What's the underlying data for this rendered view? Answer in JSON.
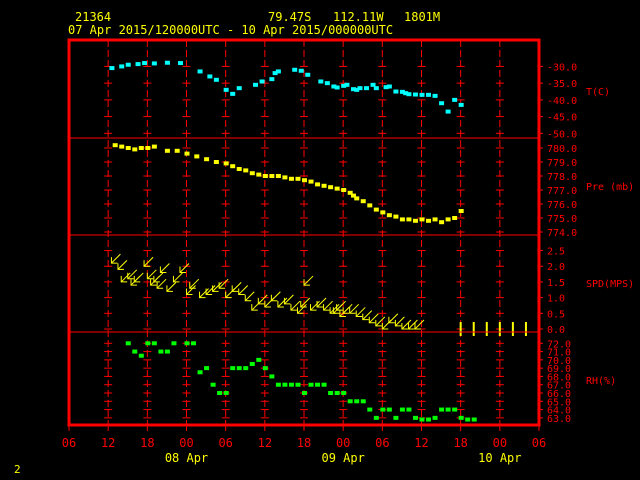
{
  "header": {
    "station": "21364",
    "lat": "79.47S",
    "lon": "112.11W",
    "elev": "1801M",
    "period": "07 Apr 2015/120000UTC - 10 Apr 2015/000000UTC"
  },
  "footer": {
    "page_number": "2"
  },
  "colors": {
    "frame": "#ff0000",
    "grid": "#ff0000",
    "axis_text": "#ff0000",
    "date_text": "#ffff00",
    "temperature": "#00ffff",
    "pressure": "#ffff00",
    "wind": "#ffff00",
    "humidity": "#00ff00"
  },
  "chart_data": {
    "type": "scatter",
    "x_unit": "hours since 07 Apr 2015 06UTC",
    "x_range": [
      0,
      72
    ],
    "x_tick_labels": [
      "06",
      "12",
      "18",
      "00",
      "06",
      "12",
      "18",
      "00",
      "06",
      "12",
      "18",
      "00",
      "06"
    ],
    "date_labels": [
      {
        "text": "08 Apr",
        "x": 18
      },
      {
        "text": "09 Apr",
        "x": 42
      },
      {
        "text": "10 Apr",
        "x": 66
      }
    ],
    "panels": [
      {
        "name": "temperature",
        "label": "T(C)",
        "tick_labels": [
          "-30.0",
          "-35.0",
          "-40.0",
          "-45.0",
          "-50.0"
        ],
        "tick_values": [
          -30,
          -35,
          -40,
          -45,
          -50
        ],
        "ylim": [
          -50.5,
          -23.0
        ],
        "x": [
          6.5,
          8,
          9,
          10.5,
          11.5,
          13,
          15,
          17,
          20,
          21.5,
          22.5,
          24,
          25,
          26,
          28.5,
          29.5,
          31,
          31.5,
          32,
          34.5,
          35.5,
          36.5,
          38.5,
          39.5,
          40.5,
          41,
          42,
          42.5,
          43.5,
          44,
          44.5,
          45.5,
          46.5,
          47,
          48.5,
          49,
          50,
          51,
          51.5,
          52,
          53,
          54,
          55,
          56,
          57,
          58,
          59,
          60
        ],
        "y": [
          -30.5,
          -30.0,
          -29.5,
          -29.3,
          -29.0,
          -29.1,
          -28.9,
          -29.0,
          -31.5,
          -33.0,
          -34.0,
          -37.0,
          -38.2,
          -36.5,
          -35.5,
          -34.5,
          -33.8,
          -32.0,
          -31.5,
          -31.0,
          -31.3,
          -32.5,
          -34.5,
          -35.0,
          -36.0,
          -36.3,
          -35.8,
          -35.5,
          -36.8,
          -37.0,
          -36.5,
          -36.5,
          -35.5,
          -36.5,
          -36.2,
          -36.0,
          -37.5,
          -37.6,
          -38.0,
          -38.3,
          -38.4,
          -38.5,
          -38.5,
          -38.8,
          -41.0,
          -43.5,
          -40.0,
          -41.5
        ]
      },
      {
        "name": "pressure",
        "label": "Pre (mb)",
        "tick_labels": [
          "780.0",
          "779.0",
          "778.0",
          "777.0",
          "776.0",
          "775.0",
          "774.0"
        ],
        "tick_values": [
          780,
          779,
          778,
          777,
          776,
          775,
          774
        ],
        "ylim": [
          774.0,
          780.5
        ],
        "x": [
          7,
          8,
          9,
          10,
          11,
          12,
          13,
          15,
          16.5,
          18,
          19.5,
          21,
          22.5,
          24,
          25,
          26,
          27,
          28,
          29,
          30,
          31,
          32,
          33,
          34,
          35,
          36,
          37,
          38,
          39,
          40,
          41,
          42,
          43,
          43.5,
          44,
          45,
          46,
          47,
          48,
          49,
          50,
          51,
          52,
          53,
          54,
          55,
          56,
          57,
          58,
          59,
          60
        ],
        "y": [
          780.2,
          780.1,
          780.0,
          779.9,
          780.0,
          780.0,
          780.1,
          779.8,
          779.8,
          779.6,
          779.4,
          779.2,
          779.0,
          778.9,
          778.7,
          778.5,
          778.4,
          778.2,
          778.1,
          778.0,
          778.0,
          778.0,
          777.9,
          777.8,
          777.8,
          777.7,
          777.6,
          777.4,
          777.3,
          777.2,
          777.1,
          777.0,
          776.8,
          776.6,
          776.4,
          776.2,
          775.9,
          775.6,
          775.4,
          775.2,
          775.1,
          774.9,
          774.9,
          774.8,
          774.9,
          774.8,
          774.9,
          774.7,
          774.9,
          775.0,
          775.5
        ]
      },
      {
        "name": "wind",
        "label": "SPD(MPS)",
        "tick_labels": [
          "2.5",
          "2.0",
          "1.5",
          "1.0",
          "0.5",
          "0.0"
        ],
        "tick_values": [
          2.5,
          2.0,
          1.5,
          1.0,
          0.5,
          0.0
        ],
        "ylim": [
          0.0,
          2.9
        ],
        "x": [
          6.5,
          7.5,
          8,
          9,
          9.5,
          10,
          11.5,
          12,
          12.5,
          13,
          13.5,
          14,
          15,
          16,
          17,
          18,
          18.5,
          20,
          21,
          22,
          23,
          24,
          25,
          26,
          27,
          28,
          29,
          30,
          31,
          32,
          33,
          34,
          35,
          35.5,
          36,
          37,
          38,
          39,
          40,
          40.5,
          41,
          41.5,
          42,
          43,
          44,
          45,
          46,
          47,
          48,
          49,
          50,
          51,
          52,
          53
        ],
        "y": [
          2.1,
          1.9,
          1.5,
          1.6,
          1.4,
          1.5,
          2.0,
          1.6,
          1.4,
          1.5,
          1.3,
          1.8,
          1.2,
          1.5,
          1.8,
          1.1,
          1.3,
          1.0,
          1.1,
          1.2,
          1.3,
          1.0,
          1.2,
          1.1,
          0.9,
          0.6,
          0.8,
          0.7,
          0.9,
          0.7,
          0.8,
          0.6,
          0.5,
          0.7,
          1.4,
          0.6,
          0.7,
          0.6,
          0.5,
          0.5,
          0.6,
          0.4,
          0.5,
          0.5,
          0.4,
          0.3,
          0.2,
          0.1,
          0.0,
          0.2,
          0.1,
          0.0,
          0.0,
          0.0
        ],
        "calm_x": [
          60,
          62,
          64,
          66,
          68,
          70
        ]
      },
      {
        "name": "humidity",
        "label": "RH(%)",
        "tick_labels": [
          "72.0",
          "71.0",
          "70.0",
          "69.0",
          "68.0",
          "67.0",
          "66.0",
          "65.0",
          "64.0",
          "63.0"
        ],
        "tick_values": [
          72,
          71,
          70,
          69,
          68,
          67,
          66,
          65,
          64,
          63
        ],
        "ylim": [
          62.5,
          73.0
        ],
        "x": [
          9,
          10,
          11,
          12,
          13,
          14,
          15,
          16,
          18,
          19,
          20,
          21,
          22,
          23,
          24,
          25,
          26,
          27,
          28,
          29,
          30,
          31,
          32,
          33,
          34,
          35,
          36,
          37,
          38,
          39,
          40,
          41,
          42,
          43,
          44,
          45,
          46,
          47,
          48,
          49,
          50,
          51,
          52,
          53,
          54,
          55,
          56,
          57,
          58,
          59,
          60,
          61,
          62
        ],
        "y": [
          72.0,
          71.0,
          70.5,
          72.0,
          72.0,
          71.0,
          71.0,
          72.0,
          72.0,
          72.0,
          68.5,
          69.0,
          67.0,
          66.0,
          66.0,
          69.0,
          69.0,
          69.0,
          69.5,
          70.0,
          69.0,
          68.0,
          67.0,
          67.0,
          67.0,
          67.0,
          66.0,
          67.0,
          67.0,
          67.0,
          66.0,
          66.0,
          66.0,
          65.0,
          65.0,
          65.0,
          64.0,
          63.0,
          64.0,
          64.0,
          63.0,
          64.0,
          64.0,
          63.0,
          62.8,
          62.8,
          63.0,
          64.0,
          64.0,
          64.0,
          63.0,
          62.8,
          62.8
        ]
      }
    ],
    "grid": true
  }
}
